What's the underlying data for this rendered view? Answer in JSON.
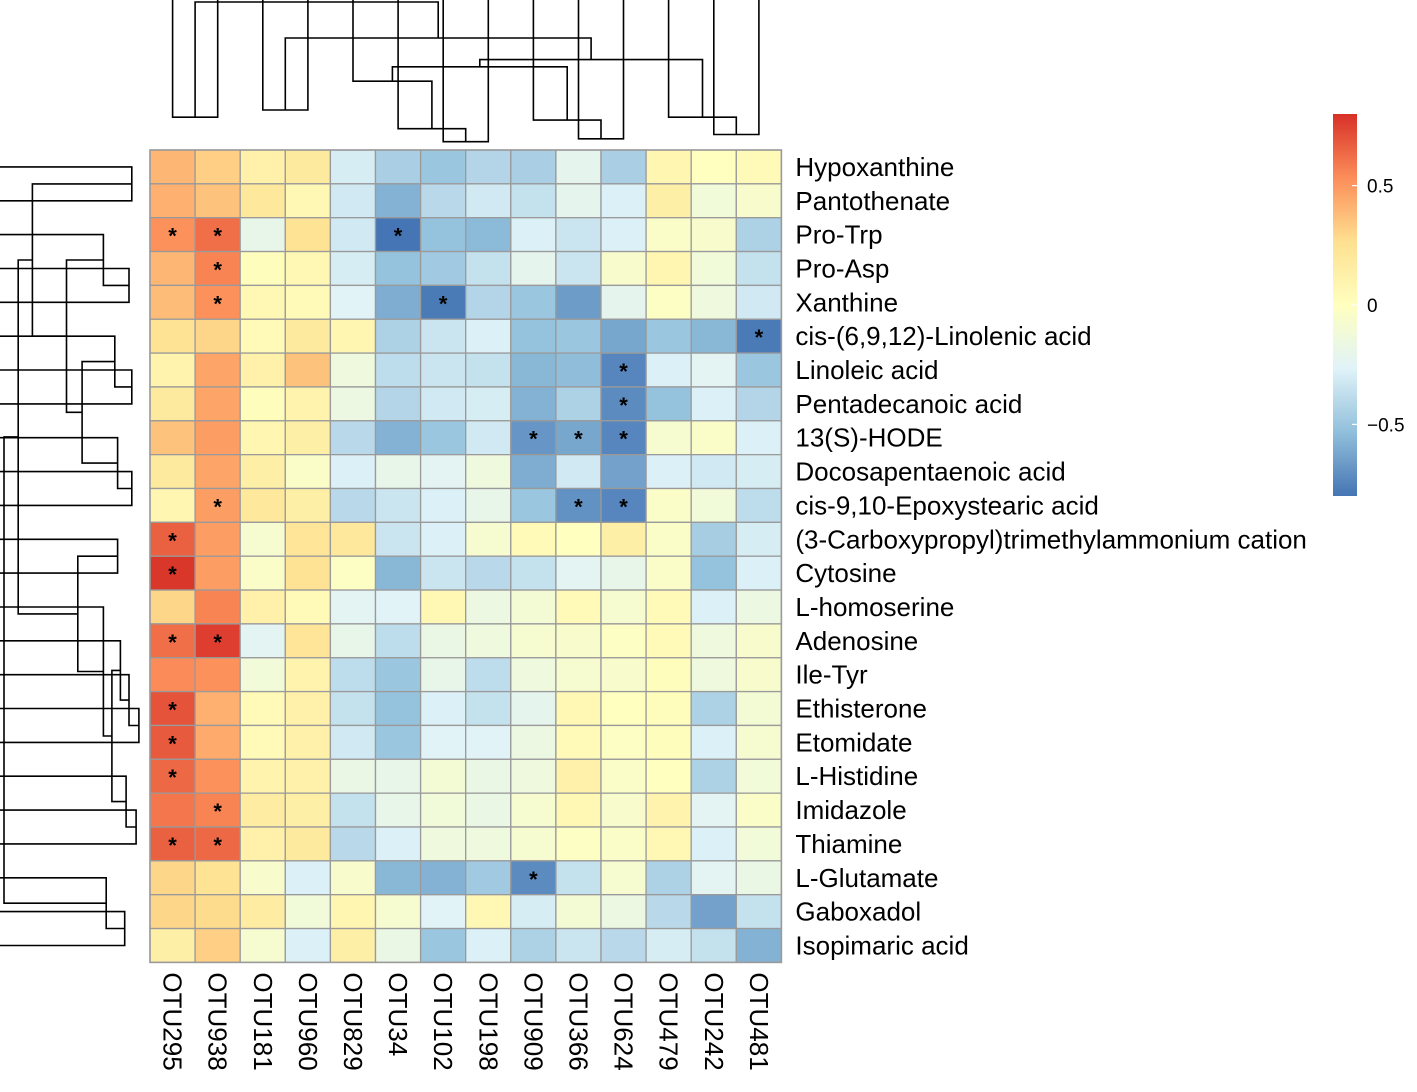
{
  "chart_data": {
    "type": "heatmap",
    "title": "",
    "xlabel": "",
    "ylabel": "",
    "columns": [
      "OTU295",
      "OTU938",
      "OTU181",
      "OTU960",
      "OTU829",
      "OTU34",
      "OTU102",
      "OTU198",
      "OTU909",
      "OTU366",
      "OTU624",
      "OTU479",
      "OTU242",
      "OTU481"
    ],
    "rows": [
      {
        "name": "Hypoxanthine",
        "values": [
          0.4,
          0.32,
          0.12,
          0.18,
          -0.3,
          -0.45,
          -0.5,
          -0.42,
          -0.45,
          -0.22,
          -0.45,
          0.08,
          0.0,
          0.04
        ]
      },
      {
        "name": "Pantothenate",
        "values": [
          0.42,
          0.36,
          0.2,
          0.06,
          -0.32,
          -0.58,
          -0.4,
          -0.32,
          -0.36,
          -0.22,
          -0.28,
          0.14,
          -0.12,
          -0.06
        ]
      },
      {
        "name": "Pro-Trp",
        "values": [
          0.52,
          0.62,
          -0.2,
          0.24,
          -0.32,
          -0.8,
          -0.52,
          -0.55,
          -0.28,
          -0.34,
          -0.28,
          -0.04,
          -0.06,
          -0.44
        ]
      },
      {
        "name": "Pro-Asp",
        "values": [
          0.4,
          0.56,
          0.02,
          0.06,
          -0.3,
          -0.52,
          -0.48,
          -0.36,
          -0.22,
          -0.34,
          -0.06,
          0.08,
          -0.12,
          -0.36
        ]
      },
      {
        "name": "Xanthine",
        "values": [
          0.38,
          0.52,
          0.06,
          0.04,
          -0.26,
          -0.6,
          -0.78,
          -0.42,
          -0.5,
          -0.66,
          -0.22,
          -0.02,
          -0.14,
          -0.32
        ]
      },
      {
        "name": "cis-(6,9,12)-Linolenic acid",
        "values": [
          0.24,
          0.3,
          0.04,
          0.18,
          0.08,
          -0.44,
          -0.34,
          -0.28,
          -0.52,
          -0.5,
          -0.62,
          -0.5,
          -0.56,
          -0.78
        ]
      },
      {
        "name": "Linoleic acid",
        "values": [
          0.1,
          0.46,
          0.12,
          0.36,
          -0.14,
          -0.38,
          -0.34,
          -0.36,
          -0.56,
          -0.54,
          -0.74,
          -0.28,
          -0.24,
          -0.5
        ]
      },
      {
        "name": "Pentadecanoic acid",
        "values": [
          0.18,
          0.46,
          0.02,
          0.1,
          -0.16,
          -0.42,
          -0.32,
          -0.3,
          -0.58,
          -0.44,
          -0.72,
          -0.52,
          -0.28,
          -0.42
        ]
      },
      {
        "name": "13(S)-HODE",
        "values": [
          0.36,
          0.48,
          0.08,
          0.14,
          -0.4,
          -0.58,
          -0.5,
          -0.32,
          -0.68,
          -0.62,
          -0.74,
          -0.08,
          -0.04,
          -0.28
        ]
      },
      {
        "name": "Docosapentaenoic acid",
        "values": [
          0.18,
          0.46,
          0.14,
          -0.04,
          -0.28,
          -0.2,
          -0.24,
          -0.14,
          -0.6,
          -0.32,
          -0.64,
          -0.28,
          -0.32,
          -0.3
        ]
      },
      {
        "name": "cis-9,10-Epoxystearic acid",
        "values": [
          0.08,
          0.48,
          0.2,
          0.14,
          -0.4,
          -0.34,
          -0.28,
          -0.2,
          -0.5,
          -0.7,
          -0.74,
          -0.04,
          -0.12,
          -0.38
        ]
      },
      {
        "name": "(3-Carboxypropyl)trimethylammonium cation",
        "values": [
          0.66,
          0.48,
          -0.08,
          0.22,
          0.2,
          -0.34,
          -0.28,
          -0.08,
          0.04,
          0.0,
          0.14,
          -0.04,
          -0.46,
          -0.3
        ]
      },
      {
        "name": "Cytosine",
        "values": [
          0.78,
          0.48,
          -0.04,
          0.24,
          -0.02,
          -0.56,
          -0.34,
          -0.4,
          -0.36,
          -0.24,
          -0.2,
          -0.04,
          -0.52,
          -0.28
        ]
      },
      {
        "name": "L-homoserine",
        "values": [
          0.3,
          0.56,
          0.12,
          0.04,
          -0.24,
          -0.26,
          0.06,
          -0.16,
          -0.1,
          0.04,
          -0.08,
          0.04,
          -0.28,
          -0.16
        ]
      },
      {
        "name": "Adenosine",
        "values": [
          0.62,
          0.76,
          -0.24,
          0.22,
          -0.2,
          -0.38,
          -0.18,
          -0.14,
          -0.08,
          -0.06,
          -0.02,
          0.04,
          -0.14,
          -0.06
        ]
      },
      {
        "name": "Ile-Tyr",
        "values": [
          0.54,
          0.52,
          -0.12,
          0.1,
          -0.38,
          -0.5,
          -0.2,
          -0.38,
          -0.14,
          -0.08,
          -0.06,
          0.02,
          -0.14,
          -0.06
        ]
      },
      {
        "name": "Ethisterone",
        "values": [
          0.7,
          0.42,
          0.04,
          0.12,
          -0.36,
          -0.52,
          -0.28,
          -0.36,
          -0.22,
          0.06,
          0.0,
          0.02,
          -0.44,
          -0.1
        ]
      },
      {
        "name": "Etomidate",
        "values": [
          0.68,
          0.44,
          0.04,
          0.12,
          -0.32,
          -0.5,
          -0.26,
          -0.26,
          -0.16,
          0.04,
          -0.02,
          0.02,
          -0.28,
          -0.08
        ]
      },
      {
        "name": "L-Histidine",
        "values": [
          0.64,
          0.52,
          0.1,
          0.12,
          -0.18,
          -0.2,
          -0.1,
          -0.18,
          -0.14,
          0.12,
          -0.04,
          0.0,
          -0.44,
          -0.12
        ]
      },
      {
        "name": "Imidazole",
        "values": [
          0.6,
          0.56,
          0.16,
          0.14,
          -0.36,
          -0.2,
          -0.12,
          -0.18,
          -0.08,
          0.06,
          -0.06,
          0.1,
          -0.24,
          -0.04
        ]
      },
      {
        "name": "Thiamine",
        "values": [
          0.66,
          0.64,
          0.12,
          0.18,
          -0.4,
          -0.28,
          -0.14,
          -0.14,
          -0.08,
          -0.02,
          -0.04,
          0.06,
          -0.28,
          -0.12
        ]
      },
      {
        "name": "L-Glutamate",
        "values": [
          0.3,
          0.24,
          -0.06,
          -0.28,
          -0.06,
          -0.56,
          -0.58,
          -0.48,
          -0.72,
          -0.36,
          -0.08,
          -0.44,
          -0.24,
          -0.18
        ]
      },
      {
        "name": "Gaboxadol",
        "values": [
          0.3,
          0.28,
          0.16,
          -0.12,
          0.08,
          -0.08,
          -0.26,
          0.06,
          -0.3,
          -0.1,
          -0.16,
          -0.4,
          -0.64,
          -0.36
        ]
      },
      {
        "name": "Isopimaric acid",
        "values": [
          0.14,
          0.32,
          -0.08,
          -0.28,
          0.14,
          -0.18,
          -0.5,
          -0.28,
          -0.44,
          -0.34,
          -0.4,
          -0.3,
          -0.36,
          -0.58
        ]
      }
    ],
    "significant": [
      [
        2,
        0
      ],
      [
        2,
        1
      ],
      [
        2,
        5
      ],
      [
        3,
        1
      ],
      [
        4,
        1
      ],
      [
        4,
        6
      ],
      [
        5,
        13
      ],
      [
        6,
        10
      ],
      [
        7,
        10
      ],
      [
        8,
        8
      ],
      [
        8,
        9
      ],
      [
        8,
        10
      ],
      [
        10,
        1
      ],
      [
        10,
        9
      ],
      [
        10,
        10
      ],
      [
        11,
        0
      ],
      [
        12,
        0
      ],
      [
        14,
        0
      ],
      [
        14,
        1
      ],
      [
        16,
        0
      ],
      [
        17,
        0
      ],
      [
        18,
        0
      ],
      [
        19,
        1
      ],
      [
        20,
        0
      ],
      [
        20,
        1
      ],
      [
        21,
        8
      ]
    ],
    "significance_marker": "*",
    "color_scale": {
      "min": -0.8,
      "max": 0.8,
      "ticks": [
        {
          "value": 0.5,
          "label": "0.5"
        },
        {
          "value": 0,
          "label": "0"
        },
        {
          "value": -0.5,
          "label": "−0.5"
        }
      ],
      "stops": [
        "#4575b4",
        "#91bfdb",
        "#e0f3f8",
        "#ffffbf",
        "#fee090",
        "#fc8d59",
        "#d73027"
      ]
    },
    "row_dendrogram_order": [
      "Hypoxanthine",
      "Pantothenate",
      "Pro-Trp",
      "Pro-Asp",
      "Xanthine",
      "cis-(6,9,12)-Linolenic acid",
      "Linoleic acid",
      "Pentadecanoic acid",
      "13(S)-HODE",
      "Docosapentaenoic acid",
      "cis-9,10-Epoxystearic acid",
      "(3-Carboxypropyl)trimethylammonium cation",
      "Cytosine",
      "L-homoserine",
      "Adenosine",
      "Ile-Tyr",
      "Ethisterone",
      "Etomidate",
      "L-Histidine",
      "Imidazole",
      "Thiamine",
      "L-Glutamate",
      "Gaboxadol",
      "Isopimaric acid"
    ],
    "col_dendrogram_order": [
      "OTU295",
      "OTU938",
      "OTU181",
      "OTU960",
      "OTU829",
      "OTU34",
      "OTU102",
      "OTU198",
      "OTU909",
      "OTU366",
      "OTU624",
      "OTU479",
      "OTU242",
      "OTU481"
    ]
  }
}
